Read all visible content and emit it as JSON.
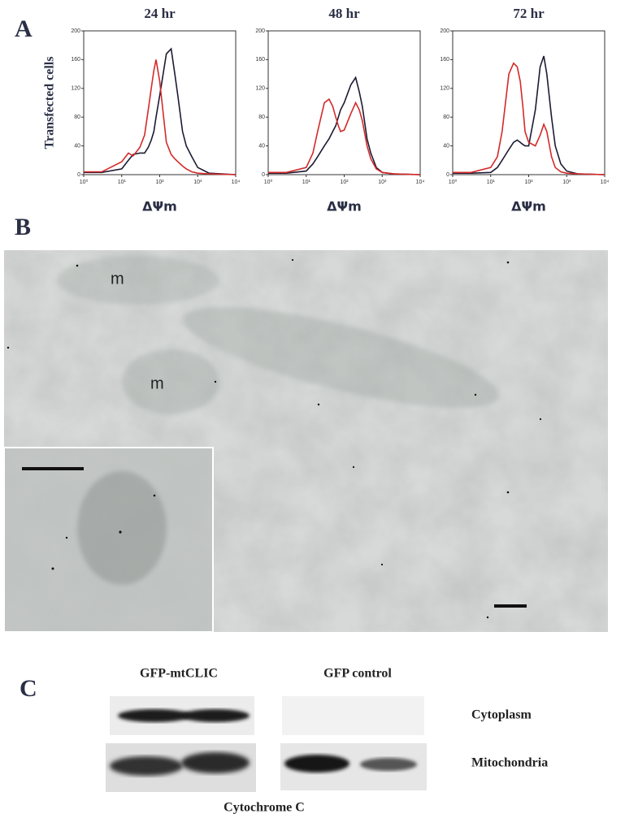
{
  "panels": [
    "A",
    "B",
    "C"
  ],
  "micrograph": {
    "labels": [
      "m",
      "m"
    ]
  },
  "blot": {
    "lanes": [
      "GFP-mtCLIC",
      "GFP control"
    ],
    "rows": [
      "Cytoplasm",
      "Mitochondria"
    ],
    "caption": "Cytochrome C"
  },
  "chart_data": [
    {
      "type": "line",
      "title": "24 hr",
      "ylabel": "Transfected cells",
      "xlabel": "ΔΨm",
      "xscale": "log",
      "x": [
        1,
        3,
        10,
        15,
        20,
        30,
        40,
        50,
        60,
        70,
        80,
        100,
        150,
        200,
        250,
        300,
        400,
        500,
        700,
        1000,
        2000,
        10000
      ],
      "series": [
        {
          "color": "#1c1b33",
          "values": [
            3,
            3,
            8,
            20,
            28,
            30,
            30,
            38,
            48,
            60,
            80,
            110,
            168,
            175,
            140,
            110,
            60,
            40,
            25,
            10,
            2,
            0
          ]
        },
        {
          "color": "#d42a2a",
          "values": [
            4,
            4,
            18,
            30,
            26,
            38,
            55,
            90,
            120,
            145,
            160,
            130,
            45,
            28,
            22,
            18,
            12,
            8,
            4,
            2,
            1,
            0
          ]
        }
      ],
      "xlim": [
        1,
        10000
      ],
      "xticks": [
        {
          "value": 1,
          "label": "10⁰"
        },
        {
          "value": 10,
          "label": "10¹"
        },
        {
          "value": 100,
          "label": "10²"
        },
        {
          "value": 1000,
          "label": "10³"
        },
        {
          "value": 10000,
          "label": "10⁴"
        }
      ],
      "ylim": [
        0,
        200
      ],
      "yticks": [
        0,
        40,
        80,
        120,
        160,
        200
      ]
    },
    {
      "type": "line",
      "title": "48 hr",
      "xlabel": "ΔΨm",
      "xscale": "log",
      "x": [
        1,
        3,
        10,
        15,
        20,
        30,
        40,
        50,
        60,
        70,
        80,
        100,
        150,
        200,
        250,
        300,
        400,
        500,
        700,
        1000,
        2000,
        10000
      ],
      "series": [
        {
          "color": "#1c1b33",
          "values": [
            2,
            2,
            5,
            15,
            25,
            40,
            50,
            60,
            68,
            80,
            90,
            100,
            125,
            135,
            115,
            95,
            50,
            30,
            10,
            3,
            1,
            0
          ]
        },
        {
          "color": "#d42a2a",
          "values": [
            3,
            3,
            10,
            30,
            60,
            100,
            105,
            95,
            80,
            68,
            60,
            62,
            85,
            100,
            90,
            75,
            40,
            22,
            8,
            3,
            1,
            0
          ]
        }
      ],
      "xlim": [
        1,
        10000
      ],
      "xticks": [
        {
          "value": 1,
          "label": "10⁰"
        },
        {
          "value": 10,
          "label": "10¹"
        },
        {
          "value": 100,
          "label": "10²"
        },
        {
          "value": 1000,
          "label": "10³"
        },
        {
          "value": 10000,
          "label": "10⁴"
        }
      ],
      "ylim": [
        0,
        200
      ],
      "yticks": [
        0,
        40,
        80,
        120,
        160,
        200
      ]
    },
    {
      "type": "line",
      "title": "72 hr",
      "xlabel": "ΔΨm",
      "xscale": "log",
      "x": [
        1,
        3,
        10,
        15,
        20,
        30,
        40,
        50,
        60,
        70,
        80,
        100,
        150,
        200,
        250,
        300,
        400,
        500,
        700,
        1000,
        2000,
        10000
      ],
      "series": [
        {
          "color": "#1c1b33",
          "values": [
            2,
            2,
            3,
            10,
            20,
            35,
            45,
            48,
            45,
            42,
            40,
            40,
            90,
            150,
            165,
            140,
            80,
            40,
            15,
            5,
            1,
            0
          ]
        },
        {
          "color": "#d42a2a",
          "values": [
            3,
            3,
            10,
            25,
            60,
            140,
            155,
            150,
            130,
            95,
            60,
            45,
            40,
            55,
            70,
            60,
            25,
            10,
            4,
            2,
            1,
            0
          ]
        }
      ],
      "xlim": [
        1,
        10000
      ],
      "xticks": [
        {
          "value": 1,
          "label": "10⁰"
        },
        {
          "value": 10,
          "label": "10¹"
        },
        {
          "value": 100,
          "label": "10²"
        },
        {
          "value": 1000,
          "label": "10³"
        },
        {
          "value": 10000,
          "label": "10⁴"
        }
      ],
      "ylim": [
        0,
        200
      ],
      "yticks": [
        0,
        40,
        80,
        120,
        160,
        200
      ]
    }
  ]
}
